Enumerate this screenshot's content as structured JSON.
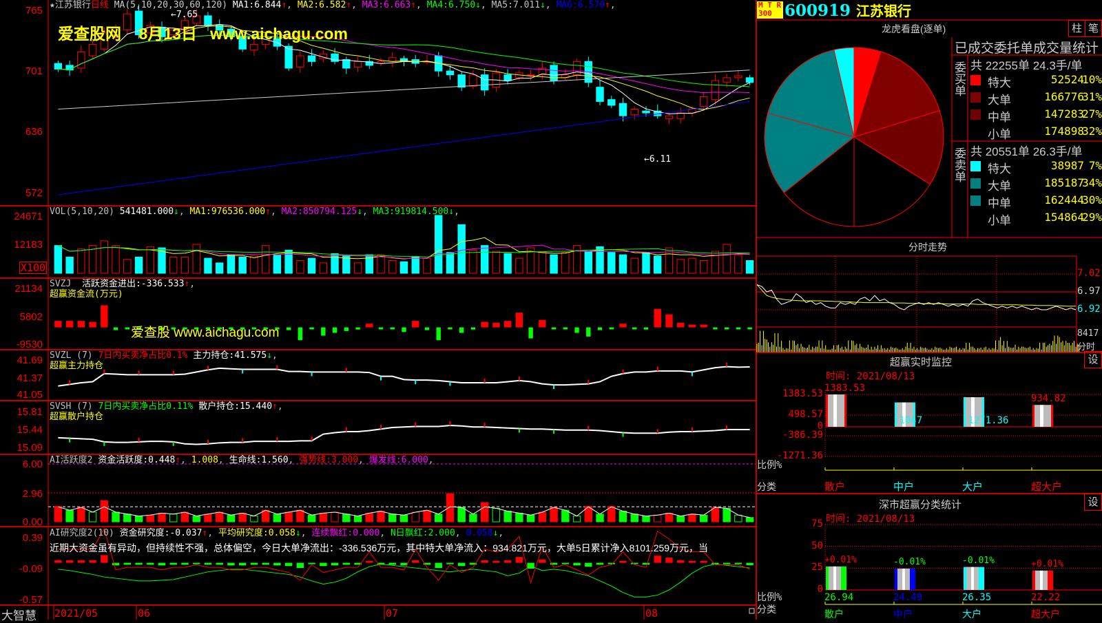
{
  "stock": {
    "code": "600919",
    "name": "江苏银行",
    "badge_top": "M T R",
    "badge_bottom": "300"
  },
  "kline": {
    "title": "江苏银行",
    "period": "日线",
    "ma_params": "MA(5,10,20,30,60,120)",
    "ma": [
      {
        "label": "MA1:",
        "value": "6.844",
        "arrow": "↑",
        "color": "#ffffff"
      },
      {
        "label": "MA2:",
        "value": "6.582",
        "arrow": "↑",
        "color": "#ffff00"
      },
      {
        "label": "MA3:",
        "value": "6.663",
        "arrow": "↑",
        "color": "#ff00ff"
      },
      {
        "label": "MA4:",
        "value": "6.750",
        "arrow": "↓",
        "color": "#00ff00"
      },
      {
        "label": "MA5:",
        "value": "7.011",
        "arrow": "↓",
        "color": "#c0c0c0"
      },
      {
        "label": "MA6:",
        "value": "6.570",
        "arrow": "↑",
        "color": "#0000ff"
      }
    ],
    "ticks": [
      "765",
      "701",
      "636",
      "572"
    ],
    "high_note": "←7.65",
    "low_note": "←6.11",
    "bars": [
      [
        7.1,
        7.04
      ],
      [
        7.08,
        7.03
      ],
      [
        7.05,
        7.22
      ],
      [
        7.18,
        7.3
      ],
      [
        7.25,
        7.42
      ],
      [
        7.4,
        7.48
      ],
      [
        7.45,
        7.62
      ],
      [
        7.65,
        7.4
      ],
      [
        7.42,
        7.5
      ],
      [
        7.48,
        7.38
      ],
      [
        7.4,
        7.45
      ],
      [
        7.45,
        7.55
      ],
      [
        7.52,
        7.6
      ],
      [
        7.6,
        7.5
      ],
      [
        7.5,
        7.45
      ],
      [
        7.46,
        7.38
      ],
      [
        7.38,
        7.25
      ],
      [
        7.24,
        7.3
      ],
      [
        7.3,
        7.38
      ],
      [
        7.36,
        7.28
      ],
      [
        7.28,
        7.05
      ],
      [
        7.06,
        7.18
      ],
      [
        7.18,
        7.12
      ],
      [
        7.15,
        7.2
      ],
      [
        7.2,
        7.12
      ],
      [
        7.14,
        7.05
      ],
      [
        7.06,
        7.12
      ],
      [
        7.12,
        7.08
      ],
      [
        7.1,
        7.12
      ],
      [
        7.12,
        7.16
      ],
      [
        7.15,
        7.12
      ],
      [
        7.14,
        7.1
      ],
      [
        7.12,
        7.12
      ],
      [
        7.18,
        7.02
      ],
      [
        7.02,
        6.98
      ],
      [
        6.98,
        6.85
      ],
      [
        6.86,
        6.98
      ],
      [
        6.98,
        6.82
      ],
      [
        6.85,
        7.0
      ],
      [
        6.98,
        6.92
      ],
      [
        6.95,
        7.0
      ],
      [
        6.98,
        6.98
      ],
      [
        6.98,
        7.05
      ],
      [
        7.08,
        6.92
      ],
      [
        6.95,
        6.98
      ],
      [
        6.98,
        7.12
      ],
      [
        7.12,
        6.9
      ],
      [
        6.85,
        6.7
      ],
      [
        6.72,
        6.66
      ],
      [
        6.68,
        6.55
      ],
      [
        6.56,
        6.62
      ],
      [
        6.6,
        6.58
      ],
      [
        6.6,
        6.55
      ],
      [
        6.52,
        6.55
      ],
      [
        6.52,
        6.58
      ],
      [
        6.58,
        6.62
      ],
      [
        6.65,
        6.75
      ],
      [
        6.72,
        6.92
      ],
      [
        6.9,
        6.95
      ],
      [
        6.95,
        6.97
      ],
      [
        6.95,
        6.9
      ]
    ]
  },
  "watermark1": "爱查股网    8月13日   www.aichagu.com",
  "watermark2": "爱查股  www.aichagu.com",
  "volume": {
    "label": "VOL(5,10,20)",
    "value": "541481.000",
    "arrow": "↓",
    "ma": [
      {
        "label": "MA1:",
        "value": "976536.000",
        "arrow": "↑",
        "color": "#ffff00"
      },
      {
        "label": "MA2:",
        "value": "850794.125",
        "arrow": "↓",
        "color": "#ff00ff"
      },
      {
        "label": "MA3:",
        "value": "919814.500",
        "arrow": "↓",
        "color": "#00ff00"
      }
    ],
    "ticks": [
      "24671",
      "12183"
    ],
    "unit": "X100",
    "values": [
      12000,
      7000,
      10500,
      12000,
      14000,
      12000,
      6000,
      7000,
      11500,
      11000,
      7000,
      7000,
      12500,
      6500,
      4500,
      8000,
      7000,
      7500,
      12000,
      8000,
      10000,
      5500,
      6500,
      4500,
      8500,
      7500,
      4500,
      8000,
      8000,
      5500,
      5000,
      7000,
      6500,
      25000,
      9000,
      21000,
      10000,
      12000,
      9500,
      8500,
      6500,
      11000,
      9000,
      8000,
      9000,
      12000,
      9500,
      11500,
      9000,
      8000,
      6500,
      9000,
      7500,
      11000,
      6000,
      6500,
      5500,
      9500,
      12500,
      8000,
      5500
    ]
  },
  "svzj": {
    "label": "SVZJ",
    "name": "活跃资金进出:",
    "value": "-336.533",
    "arrow": "↑",
    "subtitle": "超赢资金流(万元)",
    "ticks": [
      "21134",
      "5802",
      "-9530"
    ],
    "values": [
      3500,
      3500,
      3500,
      3000,
      12000,
      -1500,
      -500,
      -800,
      -600,
      -1200,
      -700,
      -900,
      -400,
      -700,
      -600,
      -800,
      -1000,
      -600,
      -800,
      -900,
      -1500,
      -7000,
      -500,
      -4500,
      -3000,
      -2000,
      -1200,
      2000,
      -1000,
      -800,
      -2500,
      3500,
      -1500,
      -7000,
      -800,
      -3000,
      -1200,
      3000,
      2500,
      3500,
      8000,
      -6000,
      4000,
      -800,
      -600,
      -3000,
      -5000,
      -1500,
      -500,
      2000,
      -400,
      -1200,
      10000,
      7000,
      2500,
      1500,
      1500,
      -500,
      -600,
      -300,
      -336.533
    ]
  },
  "svzl": {
    "label": "SVZL (7)",
    "note": "7日内买卖净占比0.1%",
    "name": "主力持仓:",
    "value": "41.575",
    "arrow": "↓",
    "subtitle": "超赢主力持仓",
    "ticks": [
      "41.69",
      "41.37",
      "41.05"
    ],
    "values": [
      41.22,
      41.25,
      41.28,
      41.3,
      41.45,
      41.44,
      41.43,
      41.43,
      41.43,
      41.43,
      41.43,
      41.44,
      41.48,
      41.52,
      41.55,
      41.54,
      41.53,
      41.53,
      41.53,
      41.53,
      41.49,
      41.49,
      41.48,
      41.48,
      41.48,
      41.48,
      41.48,
      41.47,
      41.4,
      41.4,
      41.34,
      41.33,
      41.33,
      41.32,
      41.3,
      41.28,
      41.28,
      41.28,
      41.28,
      41.3,
      41.32,
      41.3,
      41.26,
      41.24,
      41.24,
      41.25,
      41.26,
      41.3,
      41.4,
      41.45,
      41.48,
      41.48,
      41.5,
      41.5,
      41.5,
      41.48,
      41.52,
      41.56,
      41.58,
      41.57,
      41.575
    ]
  },
  "svsh": {
    "label": "SVSH (7)",
    "note": "7日内买卖净占比0.11%",
    "name": "散户持仓:",
    "value": "15.440",
    "arrow": "↑",
    "subtitle": "超赢散户持仓",
    "ticks": [
      "15.81",
      "15.44",
      "15.09"
    ],
    "values": [
      15.28,
      15.27,
      15.26,
      15.25,
      15.2,
      15.19,
      15.19,
      15.2,
      15.21,
      15.21,
      15.2,
      15.16,
      15.15,
      15.16,
      15.18,
      15.19,
      15.19,
      15.21,
      15.21,
      15.21,
      15.21,
      15.22,
      15.22,
      15.35,
      15.38,
      15.4,
      15.4,
      15.42,
      15.45,
      15.48,
      15.49,
      15.5,
      15.5,
      15.5,
      15.52,
      15.51,
      15.49,
      15.49,
      15.48,
      15.47,
      15.46,
      15.45,
      15.45,
      15.44,
      15.43,
      15.43,
      15.43,
      15.42,
      15.4,
      15.38,
      15.37,
      15.37,
      15.37,
      15.39,
      15.4,
      15.4,
      15.41,
      15.42,
      15.44,
      15.44,
      15.44
    ]
  },
  "ai_active": {
    "label": "AI活跃度2",
    "name": "资金活跃度:",
    "value": "0.448",
    "arrow": "↑",
    "v2": "1.008",
    "life_label": "生命线:",
    "life": "1.560",
    "strong_label": "强势线:",
    "strong": "3.000",
    "burst_label": "爆发线:",
    "burst": "6.000",
    "ticks": [
      "6.00",
      "2.96",
      "0.00"
    ],
    "values": [
      1.6,
      1.2,
      1.5,
      1.0,
      2.2,
      1.0,
      0.8,
      0.6,
      0.7,
      0.9,
      0.8,
      1.0,
      0.6,
      0.8,
      1.0,
      0.7,
      0.9,
      0.6,
      1.2,
      0.8,
      1.0,
      1.2,
      0.7,
      0.9,
      1.0,
      0.8,
      0.6,
      0.9,
      1.1,
      0.8,
      0.7,
      1.0,
      1.2,
      0.8,
      2.9,
      1.5,
      0.8,
      2.0,
      1.4,
      1.1,
      0.9,
      0.7,
      1.0,
      1.5,
      1.2,
      0.6,
      1.6,
      0.8,
      1.6,
      1.1,
      0.8,
      0.6,
      0.7,
      0.9,
      0.6,
      0.8,
      0.7,
      1.5,
      1.4,
      0.7,
      0.448
    ]
  },
  "ai_research": {
    "label": "AI研究度2(10)",
    "name": "资金研究度:",
    "value": "-0.037",
    "arrow": "↑",
    "avg_label": "平均研究度:",
    "avg": "0.058",
    "avg_arrow": "↓",
    "cont_label": "连续飘红:",
    "cont": "0.000",
    "nday_label": "N日飘红:",
    "nday": "2.000",
    "last": "0.058",
    "last_arrow": "↓",
    "comment": "近期大资金虽有异动，但持续性不强，总体偏空，今日大单净流出：-336.536万元，其中特大单净流入：934.821万元，大单5日累计净入8101.259万元，当",
    "ticks": [
      "0.39",
      "-0.09",
      "-0.57"
    ],
    "values": [
      0.04,
      0.04,
      0.04,
      0.04,
      0.12,
      -0.04,
      -0.03,
      -0.03,
      -0.03,
      -0.04,
      -0.03,
      -0.03,
      -0.02,
      -0.03,
      -0.03,
      -0.04,
      -0.04,
      -0.03,
      -0.03,
      -0.04,
      -0.05,
      -0.08,
      -0.02,
      -0.05,
      -0.04,
      -0.03,
      -0.03,
      0.03,
      -0.03,
      -0.03,
      -0.04,
      0.04,
      -0.03,
      -0.08,
      -0.02,
      -0.05,
      -0.03,
      0.04,
      0.03,
      0.04,
      0.09,
      -0.09,
      0.05,
      -0.03,
      -0.02,
      -0.04,
      -0.06,
      -0.03,
      -0.02,
      0.03,
      -0.02,
      -0.03,
      0.11,
      0.08,
      0.04,
      0.03,
      0.03,
      -0.02,
      -0.02,
      -0.02,
      -0.037
    ],
    "line": [
      -0.1,
      -0.12,
      -0.15,
      -0.18,
      -0.22,
      -0.24,
      -0.26,
      -0.28,
      -0.28,
      -0.27,
      -0.26,
      -0.22,
      -0.18,
      -0.14,
      -0.12,
      -0.1,
      -0.1,
      -0.12,
      -0.14,
      -0.16,
      -0.18,
      -0.22,
      -0.28,
      -0.33,
      -0.3,
      -0.24,
      -0.14,
      -0.06,
      -0.02,
      -0.04,
      -0.06,
      -0.08,
      -0.1,
      -0.12,
      -0.14,
      -0.12,
      -0.1,
      -0.12,
      -0.14,
      -0.2,
      -0.16,
      -0.05,
      -0.12,
      -0.1,
      -0.12,
      -0.16,
      -0.2,
      -0.28,
      -0.36,
      -0.46,
      -0.53,
      -0.53,
      -0.5,
      -0.42,
      -0.3,
      -0.16,
      -0.06,
      -0.02,
      -0.04,
      -0.06,
      -0.08
    ]
  },
  "xaxis": {
    "brand": "大智慧",
    "labels": [
      "2021/05",
      "06",
      "07",
      "08"
    ]
  },
  "dragon": {
    "title": "龙虎看盘(逐单)",
    "btn_bar": "柱",
    "btn_pen": "笔",
    "table_title": "已成交委托单成交量统计",
    "buy": {
      "side": "委买单",
      "summary": "共 22255单 24.3手/单",
      "rows": [
        {
          "label": "特大",
          "value": "52524",
          "pct": "10%",
          "color": "#ff0000"
        },
        {
          "label": "大单",
          "value": "166776",
          "pct": "31%",
          "color": "#800000"
        },
        {
          "label": "中单",
          "value": "147283",
          "pct": "27%",
          "color": "#700000"
        },
        {
          "label": "小单",
          "value": "174898",
          "pct": "32%",
          "color": "#000000"
        }
      ]
    },
    "sell": {
      "side": "委卖单",
      "summary": "共 20551单 26.3手/单",
      "rows": [
        {
          "label": "特大",
          "value": "38987",
          "pct": "7%",
          "color": "#00ffff"
        },
        {
          "label": "大单",
          "value": "185187",
          "pct": "34%",
          "color": "#008080"
        },
        {
          "label": "中单",
          "value": "162444",
          "pct": "30%",
          "color": "#008080"
        },
        {
          "label": "小单",
          "value": "154864",
          "pct": "29%",
          "color": "#000000"
        }
      ]
    }
  },
  "intraday": {
    "title": "分时走势",
    "ticks": [
      "7.02",
      "6.97",
      "6.92"
    ],
    "vol_label": "8417",
    "period_label": "分时",
    "price": [
      6.99,
      6.985,
      6.97,
      6.975,
      6.95,
      6.935,
      6.94,
      6.945,
      6.965,
      6.955,
      6.94,
      6.945,
      6.935,
      6.94,
      6.93,
      6.925,
      6.925,
      6.94,
      6.935,
      6.94,
      6.935,
      6.95,
      6.955,
      6.945,
      6.96,
      6.945,
      6.95,
      6.94,
      6.935,
      6.925,
      6.92,
      6.93,
      6.935,
      6.94,
      6.935,
      6.94,
      6.935,
      6.94,
      6.935,
      6.93,
      6.935,
      6.93,
      6.935,
      6.93,
      6.945,
      6.95,
      6.94,
      6.935,
      6.93,
      6.925,
      6.93,
      6.925,
      6.93,
      6.925,
      6.93,
      6.925,
      6.92,
      6.925,
      6.92,
      6.92,
      6.925,
      6.93,
      6.925,
      6.92,
      6.925,
      6.92
    ],
    "avg": [
      6.99,
      6.975,
      6.96,
      6.955,
      6.952,
      6.95,
      6.948,
      6.947,
      6.946,
      6.945,
      6.945,
      6.945,
      6.945,
      6.945,
      6.944,
      6.944,
      6.943,
      6.943,
      6.942,
      6.942,
      6.941,
      6.941,
      6.94,
      6.94,
      6.94,
      6.94,
      6.94,
      6.94,
      6.939,
      6.939,
      6.939,
      6.938,
      6.938,
      6.938,
      6.937,
      6.937,
      6.937,
      6.937,
      6.937,
      6.936,
      6.936,
      6.936,
      6.936,
      6.936,
      6.936,
      6.935,
      6.935,
      6.935,
      6.935,
      6.934,
      6.934,
      6.934,
      6.934,
      6.934,
      6.933,
      6.933,
      6.933,
      6.932,
      6.932,
      6.932,
      6.932,
      6.931,
      6.931,
      6.93,
      6.93,
      6.93
    ],
    "volume": [
      6,
      5,
      9,
      7,
      4,
      8,
      3,
      2,
      5,
      6,
      3,
      2,
      4,
      3,
      5,
      2,
      2,
      3,
      4,
      2,
      5,
      6,
      3,
      2,
      4,
      2,
      3,
      2,
      3,
      2,
      2,
      3,
      4,
      2,
      3,
      2,
      2,
      3,
      2,
      2,
      3,
      2,
      3,
      2,
      4,
      3,
      2,
      2,
      3,
      2,
      5,
      8,
      3,
      2,
      4,
      3,
      2,
      3,
      2,
      4,
      5,
      6,
      7,
      8,
      5,
      4
    ]
  },
  "monitor": {
    "title": "超赢实时监控",
    "time": "时间: 2021/08/13",
    "ticks": [
      "1383.53",
      "498.57",
      "0",
      "-386.39",
      "-1271.36"
    ],
    "ratio_label": "比例%",
    "class_label": "分类",
    "bars": [
      {
        "label": "散户",
        "value": 1383.53,
        "text": "1383.53",
        "color": "#ff0000"
      },
      {
        "label": "中户",
        "value": -1047,
        "text": "-1047",
        "color": "#00ffff"
      },
      {
        "label": "大户",
        "value": -1271.36,
        "text": "-1271.36",
        "color": "#00ffff"
      },
      {
        "label": "超大户",
        "value": 934.82,
        "text": "934.82",
        "color": "#ff0000"
      }
    ],
    "btn_settings": "设"
  },
  "shenzhen": {
    "title": "深市超赢分类统计",
    "time": "时间: 2021/08/13",
    "ticks": [
      "75",
      "50",
      "25",
      "0"
    ],
    "ratio_label": "比例%",
    "class_label": "分类",
    "bars": [
      {
        "label": "散户",
        "value": 26.94,
        "text": "26.94",
        "change": "+0.01%",
        "color": "#00ff00",
        "change_color": "#ff0000"
      },
      {
        "label": "中户",
        "value": 24.49,
        "text": "24.49",
        "change": "-0.01%",
        "color": "#0000ff",
        "change_color": "#00ff00"
      },
      {
        "label": "大户",
        "value": 26.35,
        "text": "26.35",
        "change": "-0.01%",
        "color": "#00ffff",
        "change_color": "#00ff00"
      },
      {
        "label": "超大户",
        "value": 22.22,
        "text": "22.22",
        "change": "+0.01%",
        "color": "#ff0000",
        "change_color": "#ff0000"
      }
    ],
    "btn_settings": "设"
  }
}
